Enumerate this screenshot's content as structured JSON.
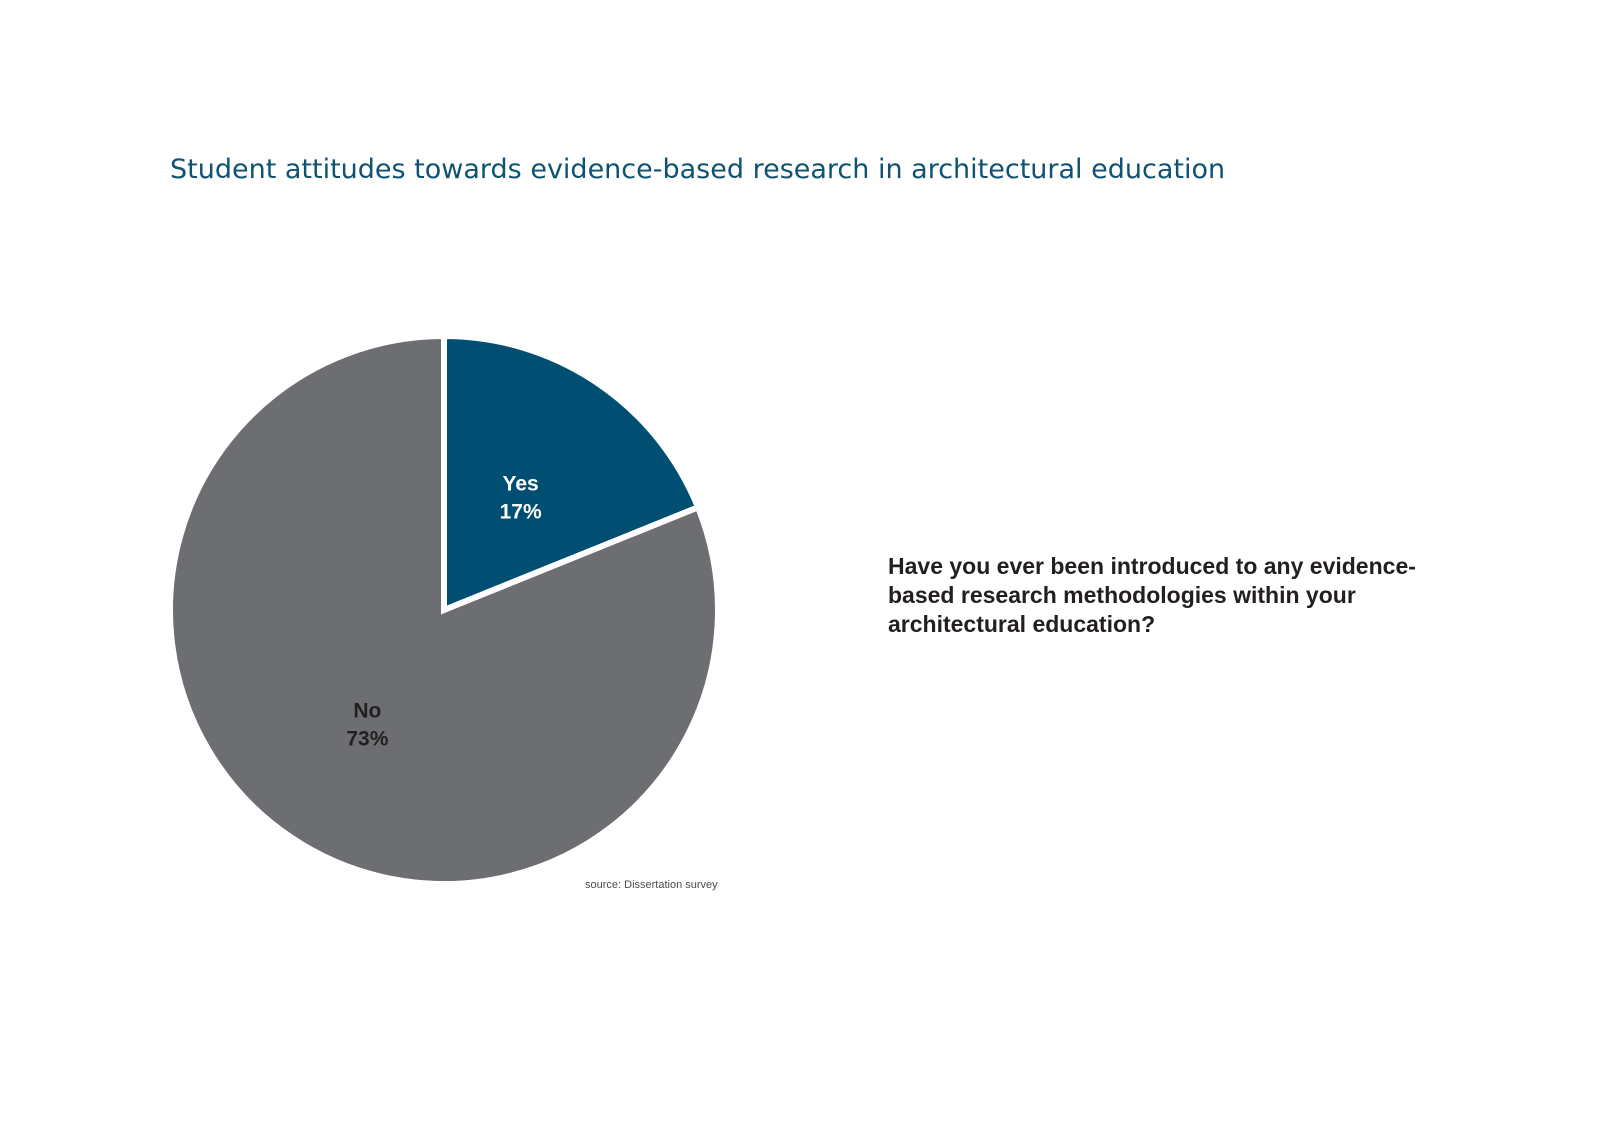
{
  "chart_data": {
    "type": "pie",
    "title": "Student attitudes towards evidence-based research in architectural education",
    "categories": [
      "Yes",
      "No"
    ],
    "values": [
      17,
      73
    ],
    "value_labels": [
      "17%",
      "73%"
    ],
    "colors": [
      "#004f73",
      "#6d6e71"
    ],
    "label_colors": [
      "#ffffff",
      "#231f20"
    ],
    "question": "Have you ever been introduced to any evidence-based research methodologies within your architectural education?",
    "source": "source: Dissertation survey"
  }
}
